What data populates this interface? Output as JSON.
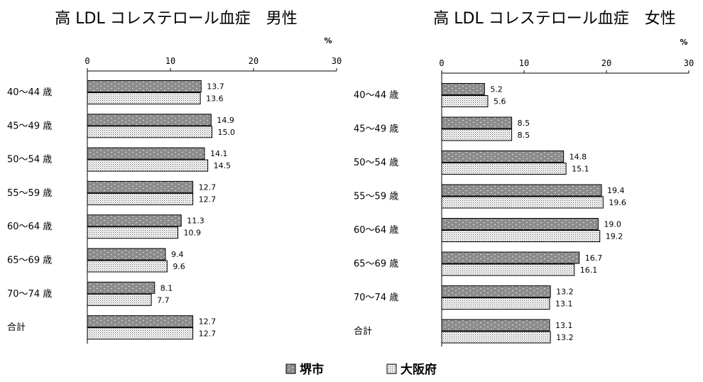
{
  "legend": {
    "sakai_label": "堺市",
    "osaka_label": "大阪府"
  },
  "chart_data": [
    {
      "type": "bar",
      "orientation": "horizontal",
      "title": "高 LDL コレステロール血症　男性",
      "unit": "%",
      "xlim": [
        0,
        30
      ],
      "ticks": [
        "0",
        "10",
        "20",
        "30"
      ],
      "categories": [
        "40～44 歳",
        "45～49 歳",
        "50～54 歳",
        "55～59 歳",
        "60～64 歳",
        "65～69 歳",
        "70～74 歳",
        "合計"
      ],
      "series": [
        {
          "name": "堺市",
          "values": [
            13.7,
            14.9,
            14.1,
            12.7,
            11.3,
            9.4,
            8.1,
            12.7
          ],
          "labels": [
            "13.7",
            "14.9",
            "14.1",
            "12.7",
            "11.3",
            "9.4",
            "8.1",
            "12.7"
          ]
        },
        {
          "name": "大阪府",
          "values": [
            13.6,
            15.0,
            14.5,
            12.7,
            10.9,
            9.6,
            7.7,
            12.7
          ],
          "labels": [
            "13.6",
            "15.0",
            "14.5",
            "12.7",
            "10.9",
            "9.6",
            "7.7",
            "12.7"
          ]
        }
      ]
    },
    {
      "type": "bar",
      "orientation": "horizontal",
      "title": "高 LDL コレステロール血症　女性",
      "unit": "%",
      "xlim": [
        0,
        30
      ],
      "ticks": [
        "0",
        "10",
        "20",
        "30"
      ],
      "categories": [
        "40～44 歳",
        "45～49 歳",
        "50～54 歳",
        "55～59 歳",
        "60～64 歳",
        "65～69 歳",
        "70～74 歳",
        "合計"
      ],
      "series": [
        {
          "name": "堺市",
          "values": [
            5.2,
            8.5,
            14.8,
            19.4,
            19.0,
            16.7,
            13.2,
            13.1
          ],
          "labels": [
            "5.2",
            "8.5",
            "14.8",
            "19.4",
            "19.0",
            "16.7",
            "13.2",
            "13.1"
          ]
        },
        {
          "name": "大阪府",
          "values": [
            5.6,
            8.5,
            15.1,
            19.6,
            19.2,
            16.1,
            13.1,
            13.2
          ],
          "labels": [
            "5.6",
            "8.5",
            "15.1",
            "19.6",
            "19.2",
            "16.1",
            "13.1",
            "13.2"
          ]
        }
      ]
    }
  ]
}
